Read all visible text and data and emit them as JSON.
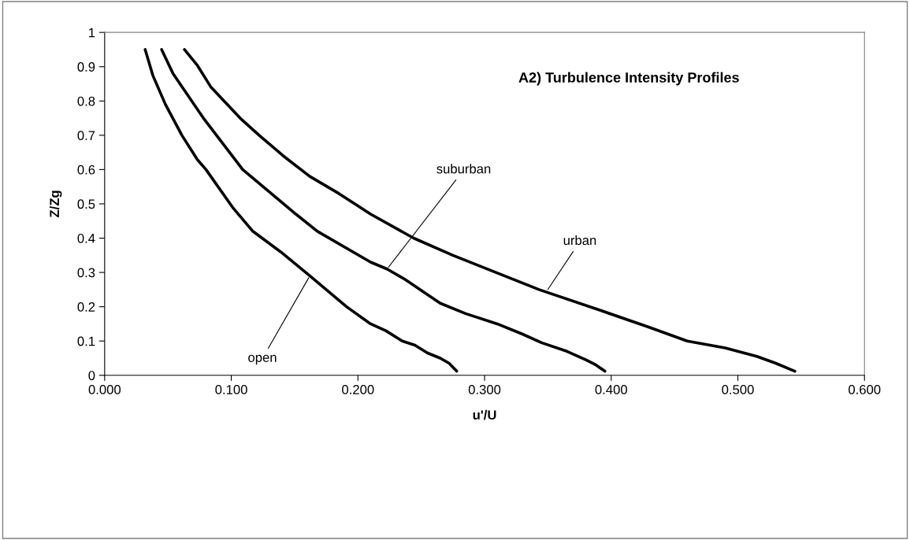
{
  "chart_data": {
    "type": "line",
    "title": "A2) Turbulence Intensity Profiles",
    "xlabel": "u'/U",
    "ylabel": "Z/Zg",
    "series": [
      {
        "color": "#000000",
        "x": [
          0.032,
          0.038,
          0.048,
          0.061,
          0.073,
          0.08,
          0.101,
          0.117,
          0.139,
          0.162,
          0.191,
          0.21,
          0.222,
          0.235,
          0.245,
          0.255,
          0.265,
          0.272,
          0.278
        ],
        "values": [
          0.95,
          0.875,
          0.79,
          0.7,
          0.63,
          0.6,
          0.49,
          0.42,
          0.36,
          0.29,
          0.2,
          0.15,
          0.13,
          0.1,
          0.088,
          0.065,
          0.05,
          0.035,
          0.012
        ]
      },
      {
        "color": "#000000",
        "x": [
          0.045,
          0.054,
          0.078,
          0.109,
          0.151,
          0.168,
          0.21,
          0.223,
          0.237,
          0.265,
          0.285,
          0.31,
          0.33,
          0.345,
          0.365,
          0.38,
          0.388,
          0.395
        ],
        "values": [
          0.95,
          0.88,
          0.75,
          0.6,
          0.47,
          0.42,
          0.33,
          0.31,
          0.28,
          0.21,
          0.18,
          0.15,
          0.12,
          0.095,
          0.07,
          0.045,
          0.03,
          0.012
        ]
      },
      {
        "color": "#000000",
        "x": [
          0.063,
          0.073,
          0.084,
          0.107,
          0.122,
          0.141,
          0.162,
          0.185,
          0.21,
          0.244,
          0.275,
          0.343,
          0.391,
          0.43,
          0.46,
          0.49,
          0.515,
          0.53,
          0.545
        ],
        "values": [
          0.95,
          0.905,
          0.84,
          0.75,
          0.7,
          0.64,
          0.58,
          0.53,
          0.47,
          0.4,
          0.35,
          0.25,
          0.19,
          0.14,
          0.1,
          0.08,
          0.055,
          0.035,
          0.012
        ]
      }
    ],
    "xlim": [
      0,
      0.6
    ],
    "ylim": [
      0,
      1
    ],
    "xticks": [
      {
        "value": 0,
        "label": "0.000"
      },
      {
        "value": 0.1,
        "label": "0.100"
      },
      {
        "value": 0.2,
        "label": "0.200"
      },
      {
        "value": 0.3,
        "label": "0.300"
      },
      {
        "value": 0.4,
        "label": "0.400"
      },
      {
        "value": 0.5,
        "label": "0.500"
      },
      {
        "value": 0.6,
        "label": "0.600"
      }
    ],
    "yticks": [
      0,
      0.1,
      0.2,
      0.3,
      0.4,
      0.5,
      0.6,
      0.7,
      0.8,
      0.9,
      1
    ],
    "annotations": [
      {
        "text": "open",
        "x": 0.162,
        "y": 0.29
      },
      {
        "text": "suburban",
        "x": 0.223,
        "y": 0.31
      },
      {
        "text": "urban",
        "x": 0.349,
        "y": 0.245
      }
    ],
    "grid": false,
    "legend": false,
    "marker": "none",
    "line_style": "solid"
  }
}
